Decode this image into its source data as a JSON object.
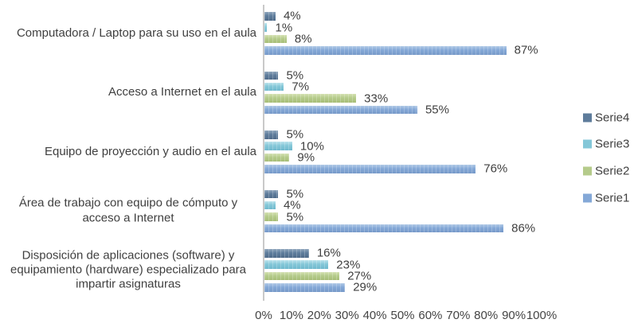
{
  "chart_data": {
    "type": "bar",
    "orientation": "horizontal",
    "title": "",
    "xlabel": "",
    "ylabel": "",
    "xlim": [
      0,
      100
    ],
    "grid": false,
    "data_labels": true,
    "data_label_format": "{value}%",
    "categories": [
      "Computadora / Laptop para su uso en el aula",
      "Acceso a Internet en el aula",
      "Equipo de proyección y audio en el aula",
      "Área de trabajo con equipo de cómputo y acceso a Internet",
      "Disposición de aplicaciones (software) y equipamiento (hardware) especializado para impartir asignaturas"
    ],
    "series": [
      {
        "name": "Serie4",
        "color": "#5e7c9b",
        "color_light": "#8fa6bc",
        "color_dark": "#4f6b8a",
        "values": [
          4,
          5,
          5,
          5,
          16
        ]
      },
      {
        "name": "Serie3",
        "color": "#84c7d8",
        "color_light": "#bce3ec",
        "color_dark": "#6fb9cd",
        "values": [
          1,
          7,
          10,
          4,
          23
        ]
      },
      {
        "name": "Serie2",
        "color": "#b5cb8b",
        "color_light": "#d4e1b2",
        "color_dark": "#a6bd76",
        "values": [
          8,
          33,
          9,
          5,
          27
        ]
      },
      {
        "name": "Serie1",
        "color": "#84a8d7",
        "color_light": "#b0c9e6",
        "color_dark": "#7699c8",
        "values": [
          87,
          55,
          76,
          86,
          29
        ]
      }
    ],
    "bar_order_top_to_bottom": [
      "Serie4",
      "Serie3",
      "Serie2",
      "Serie1"
    ],
    "x_ticks": [
      "0%",
      "10%",
      "20%",
      "30%",
      "40%",
      "50%",
      "60%",
      "70%",
      "80%",
      "90%",
      "100%"
    ],
    "legend": {
      "position": "right",
      "entries": [
        "Serie4",
        "Serie3",
        "Serie2",
        "Serie1"
      ]
    },
    "axis_line_color": "#c9c9c9",
    "text_color": "#3f3f3f"
  }
}
